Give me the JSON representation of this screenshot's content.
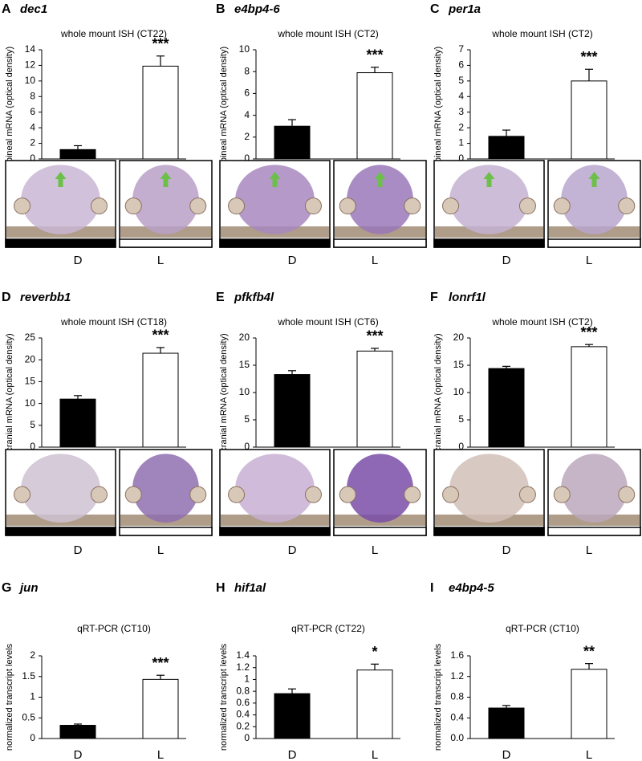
{
  "chart_data": [
    {
      "type": "bar",
      "panel": "A",
      "gene": "dec1",
      "subtitle": "whole mount ISH (CT22)",
      "ylabel": "pineal mRNA (optical density)",
      "categories": [
        "D",
        "L"
      ],
      "values": [
        1.2,
        11.9
      ],
      "errors": [
        0.5,
        1.3
      ],
      "colors": [
        "#000000",
        "#ffffff"
      ],
      "significance": "***",
      "ylim": [
        0,
        14
      ],
      "yticks": [
        0,
        2,
        4,
        6,
        8,
        10,
        12,
        14
      ]
    },
    {
      "type": "bar",
      "panel": "B",
      "gene": "e4bp4-6",
      "subtitle": "whole mount ISH (CT2)",
      "ylabel": "pineal mRNA (optical density)",
      "categories": [
        "D",
        "L"
      ],
      "values": [
        3.0,
        7.9
      ],
      "errors": [
        0.6,
        0.5
      ],
      "colors": [
        "#000000",
        "#ffffff"
      ],
      "significance": "***",
      "ylim": [
        0,
        10
      ],
      "yticks": [
        0,
        2,
        4,
        6,
        8,
        10
      ]
    },
    {
      "type": "bar",
      "panel": "C",
      "gene": "per1a",
      "subtitle": "whole mount ISH (CT2)",
      "ylabel": "pineal mRNA (optical density)",
      "categories": [
        "D",
        "L"
      ],
      "values": [
        1.45,
        5.0
      ],
      "errors": [
        0.4,
        0.75
      ],
      "colors": [
        "#000000",
        "#ffffff"
      ],
      "significance": "***",
      "ylim": [
        0,
        7
      ],
      "yticks": [
        0,
        1,
        2,
        3,
        4,
        5,
        6,
        7
      ]
    },
    {
      "type": "bar",
      "panel": "D",
      "gene": "reverbb1",
      "subtitle": "whole mount ISH (CT18)",
      "ylabel": "cranial mRNA (optical density)",
      "categories": [
        "D",
        "L"
      ],
      "values": [
        11.0,
        21.5
      ],
      "errors": [
        0.8,
        1.3
      ],
      "colors": [
        "#000000",
        "#ffffff"
      ],
      "significance": "***",
      "ylim": [
        0,
        25
      ],
      "yticks": [
        0,
        5,
        10,
        15,
        20,
        25
      ]
    },
    {
      "type": "bar",
      "panel": "E",
      "gene": "pfkfb4l",
      "subtitle": "whole mount ISH (CT6)",
      "ylabel": "cranial mRNA (optical density)",
      "categories": [
        "D",
        "L"
      ],
      "values": [
        13.3,
        17.6
      ],
      "errors": [
        0.7,
        0.5
      ],
      "colors": [
        "#000000",
        "#ffffff"
      ],
      "significance": "***",
      "ylim": [
        0,
        20
      ],
      "yticks": [
        0,
        5,
        10,
        15,
        20
      ]
    },
    {
      "type": "bar",
      "panel": "F",
      "gene": "lonrf1l",
      "subtitle": "whole mount ISH (CT2)",
      "ylabel": "cranial mRNA (optical density)",
      "categories": [
        "D",
        "L"
      ],
      "values": [
        14.4,
        18.4
      ],
      "errors": [
        0.4,
        0.4
      ],
      "colors": [
        "#000000",
        "#ffffff"
      ],
      "significance": "***",
      "ylim": [
        0,
        20
      ],
      "yticks": [
        0,
        5,
        10,
        15,
        20
      ]
    },
    {
      "type": "bar",
      "panel": "G",
      "gene": "jun",
      "subtitle": "qRT-PCR (CT10)",
      "ylabel": "normalized transcript levels",
      "categories": [
        "D",
        "L"
      ],
      "values": [
        0.32,
        1.43
      ],
      "errors": [
        0.03,
        0.1
      ],
      "colors": [
        "#000000",
        "#ffffff"
      ],
      "significance": "***",
      "ylim": [
        0,
        2
      ],
      "yticks": [
        0,
        0.5,
        1,
        1.5,
        2
      ]
    },
    {
      "type": "bar",
      "panel": "H",
      "gene": "hif1al",
      "subtitle": "qRT-PCR (CT22)",
      "ylabel": "normalized transcript levels",
      "categories": [
        "D",
        "L"
      ],
      "values": [
        0.76,
        1.16
      ],
      "errors": [
        0.08,
        0.1
      ],
      "colors": [
        "#000000",
        "#ffffff"
      ],
      "significance": "*",
      "ylim": [
        0,
        1.4
      ],
      "yticks": [
        0,
        0.2,
        0.4,
        0.6,
        0.8,
        1,
        1.2,
        1.4
      ]
    },
    {
      "type": "bar",
      "panel": "I",
      "gene": "e4bp4-5",
      "subtitle": "qRT-PCR (CT10)",
      "ylabel": "normalized transcript levels",
      "categories": [
        "D",
        "L"
      ],
      "values": [
        0.59,
        1.34
      ],
      "errors": [
        0.05,
        0.11
      ],
      "colors": [
        "#000000",
        "#ffffff"
      ],
      "significance": "**",
      "ylim": [
        0,
        1.6
      ],
      "yticks": [
        {
          "value": 0,
          "label": "0.0"
        },
        0.4,
        0.8,
        1.2,
        1.6
      ]
    }
  ]
}
